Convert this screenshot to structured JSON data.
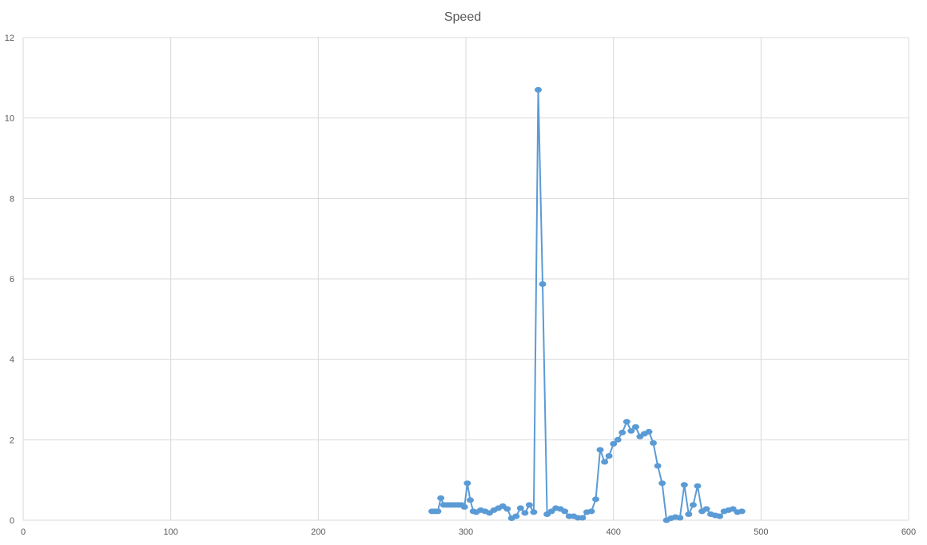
{
  "chart_data": {
    "type": "scatter",
    "title": "Speed",
    "xlabel": "",
    "ylabel": "",
    "xlim": [
      0,
      600
    ],
    "ylim": [
      0,
      12
    ],
    "x_ticks": [
      "0",
      "100",
      "200",
      "300",
      "400",
      "500",
      "600"
    ],
    "y_ticks": [
      "0",
      "2",
      "4",
      "6",
      "8",
      "10",
      "12"
    ],
    "grid": true,
    "legend": "none",
    "line_color": "#5B9BD5",
    "series": [
      {
        "x": [
          277,
          279,
          281,
          283,
          285,
          287,
          289,
          291,
          293,
          295,
          297,
          299,
          301,
          303,
          305,
          307,
          310,
          313,
          316,
          319,
          322,
          325,
          328,
          331,
          334,
          337,
          340,
          343,
          346,
          349,
          352,
          355,
          358,
          361,
          364,
          367,
          370,
          373,
          376,
          379,
          382,
          385,
          388,
          391,
          394,
          397,
          400,
          403,
          406,
          409,
          412,
          415,
          418,
          421,
          424,
          427,
          430,
          433,
          436,
          439,
          442,
          445,
          448,
          451,
          454,
          457,
          460,
          463,
          466,
          469,
          472,
          475,
          478,
          481,
          484,
          487
        ],
        "y": [
          0.22,
          0.22,
          0.22,
          0.55,
          0.38,
          0.38,
          0.38,
          0.38,
          0.38,
          0.38,
          0.38,
          0.33,
          0.92,
          0.5,
          0.22,
          0.2,
          0.25,
          0.22,
          0.18,
          0.25,
          0.3,
          0.35,
          0.28,
          0.05,
          0.1,
          0.3,
          0.18,
          0.38,
          0.2,
          10.7,
          5.87,
          0.15,
          0.22,
          0.3,
          0.28,
          0.22,
          0.1,
          0.1,
          0.06,
          0.06,
          0.2,
          0.22,
          0.52,
          1.75,
          1.45,
          1.6,
          1.9,
          2.0,
          2.18,
          2.45,
          2.22,
          2.32,
          2.08,
          2.15,
          2.2,
          1.92,
          1.35,
          0.92,
          0.0,
          0.05,
          0.08,
          0.06,
          0.88,
          0.15,
          0.38,
          0.85,
          0.22,
          0.28,
          0.15,
          0.12,
          0.1,
          0.22,
          0.25,
          0.28,
          0.2,
          0.22
        ]
      }
    ]
  }
}
